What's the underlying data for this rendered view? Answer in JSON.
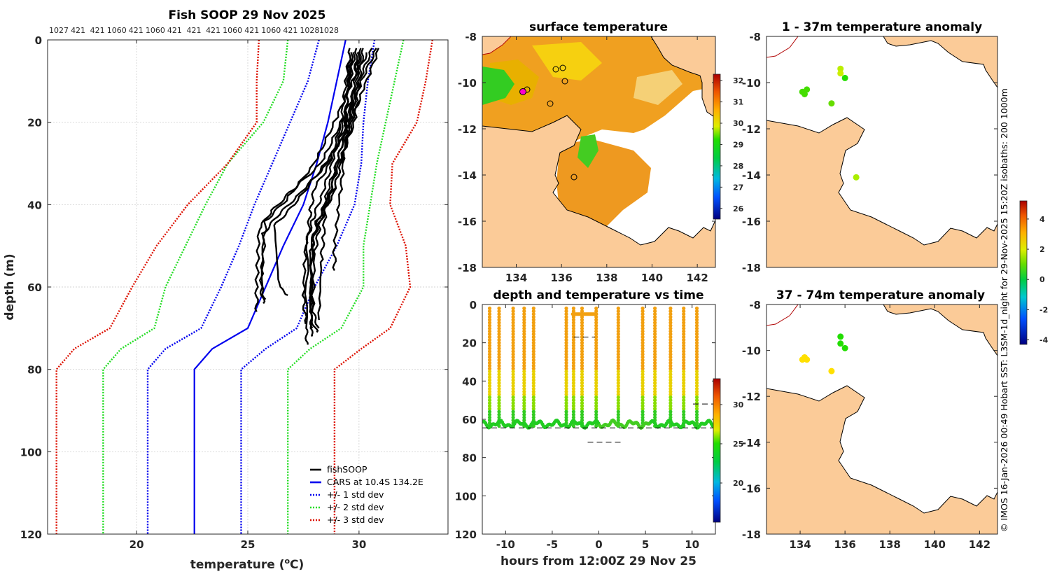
{
  "colors": {
    "land": "#fbcb98",
    "grid": "#c8c8c8",
    "fish": "#000000",
    "cars": "#0000ee",
    "std1": "#0000ee",
    "std2": "#22dd22",
    "std3": "#dd1100"
  },
  "chart_data": [
    {
      "id": "profile",
      "type": "line",
      "title": "Fish SOOP 29 Nov 2025",
      "xlabel": "temperature (°C)",
      "xlabel_main": "temperature (",
      "xlabel_sup": "o",
      "xlabel_end": "C)",
      "ylabel": "depth (m)",
      "xlim": [
        16.0,
        34.0
      ],
      "ylim": [
        0,
        120
      ],
      "yreversed": true,
      "xticks": [
        20,
        25,
        30
      ],
      "yticks": [
        0,
        20,
        40,
        60,
        80,
        100,
        120
      ],
      "top_labels": [
        "1027",
        "421",
        "421",
        "1060",
        "421",
        "1060",
        "421",
        "421",
        "421",
        "1060",
        "421",
        "1060",
        "421",
        "1028",
        "1028"
      ],
      "legend": {
        "placement": "bottom-right",
        "entries": [
          {
            "key": "fish",
            "label": "fishSOOP",
            "style": "solid"
          },
          {
            "key": "cars",
            "label": "CARS at 10.4S 134.2E",
            "style": "solid"
          },
          {
            "key": "std1",
            "label": "+/- 1 std dev",
            "style": "dotted"
          },
          {
            "key": "std2",
            "label": "+/- 2 std dev",
            "style": "dotted"
          },
          {
            "key": "std3",
            "label": "+/- 3 std dev",
            "style": "dotted"
          }
        ]
      },
      "series": [
        {
          "name": "CARS mean",
          "key": "cars",
          "depth": [
            0,
            10,
            20,
            30,
            40,
            50,
            60,
            70,
            75,
            80,
            120
          ],
          "temp": [
            29.4,
            29.0,
            28.6,
            28.1,
            27.5,
            26.6,
            25.8,
            25.0,
            23.4,
            22.6,
            22.6
          ]
        },
        {
          "name": "-1 std",
          "key": "std1",
          "depth": [
            0,
            10,
            20,
            30,
            40,
            50,
            60,
            70,
            75,
            80,
            120
          ],
          "temp": [
            28.2,
            27.7,
            26.9,
            26.1,
            25.3,
            24.6,
            23.8,
            22.9,
            21.3,
            20.5,
            20.5
          ]
        },
        {
          "name": "+1 std",
          "key": "std1",
          "depth": [
            0,
            10,
            20,
            30,
            40,
            50,
            60,
            70,
            75,
            80,
            120
          ],
          "temp": [
            30.7,
            30.4,
            30.2,
            30.1,
            29.8,
            29.0,
            28.0,
            27.2,
            25.8,
            24.7,
            24.7
          ]
        },
        {
          "name": "-2 std",
          "key": "std2",
          "depth": [
            0,
            10,
            20,
            30,
            40,
            50,
            60,
            70,
            75,
            80,
            120
          ],
          "temp": [
            26.8,
            26.6,
            25.7,
            24.1,
            23.1,
            22.2,
            21.3,
            20.8,
            19.3,
            18.5,
            18.5
          ]
        },
        {
          "name": "+2 std",
          "key": "std2",
          "depth": [
            0,
            10,
            20,
            30,
            40,
            50,
            60,
            70,
            75,
            80,
            120
          ],
          "temp": [
            32.0,
            31.6,
            31.2,
            30.8,
            30.5,
            30.2,
            30.2,
            29.2,
            27.8,
            26.8,
            26.8
          ]
        },
        {
          "name": "-3 std",
          "key": "std3",
          "depth": [
            0,
            10,
            20,
            30,
            40,
            50,
            60,
            70,
            75,
            80,
            120
          ],
          "temp": [
            25.5,
            25.4,
            25.4,
            24.1,
            22.3,
            20.9,
            19.8,
            18.8,
            17.2,
            16.4,
            16.4
          ]
        },
        {
          "name": "+3 std",
          "key": "std3",
          "depth": [
            0,
            10,
            20,
            30,
            40,
            50,
            60,
            70,
            75,
            80,
            120
          ],
          "temp": [
            33.3,
            33.0,
            32.6,
            31.5,
            31.4,
            32.1,
            32.3,
            31.4,
            30.1,
            28.9,
            28.9
          ]
        },
        {
          "name": "fishSOOP profiles",
          "key": "fish",
          "profiles": [
            {
              "depth": [
                2,
                10,
                20,
                30,
                37,
                42,
                46,
                60,
                66
              ],
              "temp": [
                30.6,
                30.0,
                29.2,
                28.3,
                26.9,
                26.0,
                25.5,
                25.4,
                25.4
              ]
            },
            {
              "depth": [
                2,
                10,
                20,
                30,
                38,
                43,
                47,
                60,
                64
              ],
              "temp": [
                30.8,
                30.1,
                29.5,
                28.6,
                27.2,
                26.3,
                25.7,
                25.6,
                25.7
              ]
            },
            {
              "depth": [
                3,
                10,
                20,
                30,
                39,
                44,
                60,
                63
              ],
              "temp": [
                30.4,
                29.7,
                28.9,
                28.0,
                26.7,
                25.8,
                25.6,
                25.8
              ]
            },
            {
              "depth": [
                2,
                12,
                22,
                32,
                40,
                45,
                60,
                62
              ],
              "temp": [
                30.9,
                30.2,
                29.5,
                28.2,
                27.1,
                26.2,
                26.4,
                26.8
              ]
            },
            {
              "depth": [
                3,
                10,
                20,
                30,
                36,
                42,
                48,
                70,
                74
              ],
              "temp": [
                29.6,
                29.4,
                29.2,
                28.7,
                28.0,
                27.8,
                27.7,
                27.6,
                27.7
              ]
            },
            {
              "depth": [
                2,
                10,
                20,
                30,
                38,
                44,
                50,
                70,
                72
              ],
              "temp": [
                29.9,
                29.8,
                29.6,
                29.2,
                28.8,
                28.1,
                27.9,
                27.8,
                27.9
              ]
            },
            {
              "depth": [
                3,
                12,
                22,
                30,
                38,
                46,
                52,
                68,
                71
              ],
              "temp": [
                29.7,
                29.5,
                29.4,
                29.0,
                28.5,
                28.2,
                28.0,
                27.9,
                28.1
              ]
            },
            {
              "depth": [
                2,
                10,
                20,
                28,
                36,
                42,
                48,
                66,
                70
              ],
              "temp": [
                30.1,
                29.9,
                29.7,
                29.3,
                28.9,
                28.3,
                27.9,
                27.8,
                27.9
              ]
            },
            {
              "depth": [
                3,
                10,
                20,
                30,
                38,
                44,
                50,
                62,
                69
              ],
              "temp": [
                29.8,
                29.6,
                29.3,
                28.8,
                28.3,
                27.9,
                27.6,
                27.5,
                27.6
              ]
            },
            {
              "depth": [
                2,
                10,
                20,
                30,
                40,
                48,
                54,
                68
              ],
              "temp": [
                30.2,
                30.0,
                29.8,
                29.1,
                28.5,
                28.4,
                28.3,
                28.2
              ]
            },
            {
              "depth": [
                2,
                10,
                20,
                30,
                40,
                50,
                56
              ],
              "temp": [
                29.6,
                29.5,
                29.4,
                29.3,
                29.1,
                28.9,
                28.9
              ]
            },
            {
              "depth": [
                3,
                10,
                20,
                30,
                40,
                46,
                52,
                66,
                70
              ],
              "temp": [
                30.0,
                29.8,
                29.5,
                29.0,
                28.6,
                28.1,
                27.8,
                27.9,
                28.2
              ]
            }
          ]
        }
      ]
    },
    {
      "id": "sst_map",
      "type": "heatmap",
      "title": "surface temperature",
      "xlim": [
        132.5,
        142.8
      ],
      "ylim": [
        -18,
        -8
      ],
      "xticks": [
        134,
        136,
        138,
        140,
        142
      ],
      "yticks": [
        -8,
        -10,
        -12,
        -14,
        -16,
        -18
      ],
      "colorbar": {
        "min": 25.5,
        "max": 32.3,
        "ticks": [
          26,
          27,
          28,
          29,
          30,
          31,
          32
        ]
      }
    },
    {
      "id": "time_depth",
      "type": "scatter",
      "title": "depth and temperature vs time",
      "xlabel": "hours from 12:00Z 29 Nov 25",
      "xlim": [
        -12.5,
        12.5
      ],
      "ylim": [
        0,
        120
      ],
      "yreversed": true,
      "xticks": [
        -10,
        -5,
        0,
        5,
        10
      ],
      "yticks": [
        0,
        20,
        40,
        60,
        80,
        100,
        120
      ],
      "colorbar": {
        "min": 15.0,
        "max": 33.3,
        "ticks": [
          20,
          25,
          30
        ]
      }
    },
    {
      "id": "anom1",
      "type": "scatter",
      "title": "1 - 37m temperature anomaly",
      "xlim": [
        132.5,
        142.8
      ],
      "ylim": [
        -18,
        -8
      ],
      "xticks": [],
      "yticks": [
        -8,
        -10,
        -12,
        -14,
        -16,
        -18
      ]
    },
    {
      "id": "anom2",
      "type": "scatter",
      "title": "37 - 74m temperature anomaly",
      "xlim": [
        132.5,
        142.8
      ],
      "ylim": [
        -18,
        -8
      ],
      "xticks": [
        134,
        136,
        138,
        140,
        142
      ],
      "yticks": [
        -8,
        -10,
        -12,
        -14,
        -16,
        -18
      ],
      "colorbar": {
        "min": -4.3,
        "max": 5.2,
        "ticks": [
          -4,
          -2,
          0,
          2,
          4
        ]
      }
    }
  ],
  "side_note": "© IMOS 16-Jan-2026 00:49 Hobart SST: L3SM-1d_night for 29-Nov-2025 15:20Z isobaths: 200 1000m"
}
